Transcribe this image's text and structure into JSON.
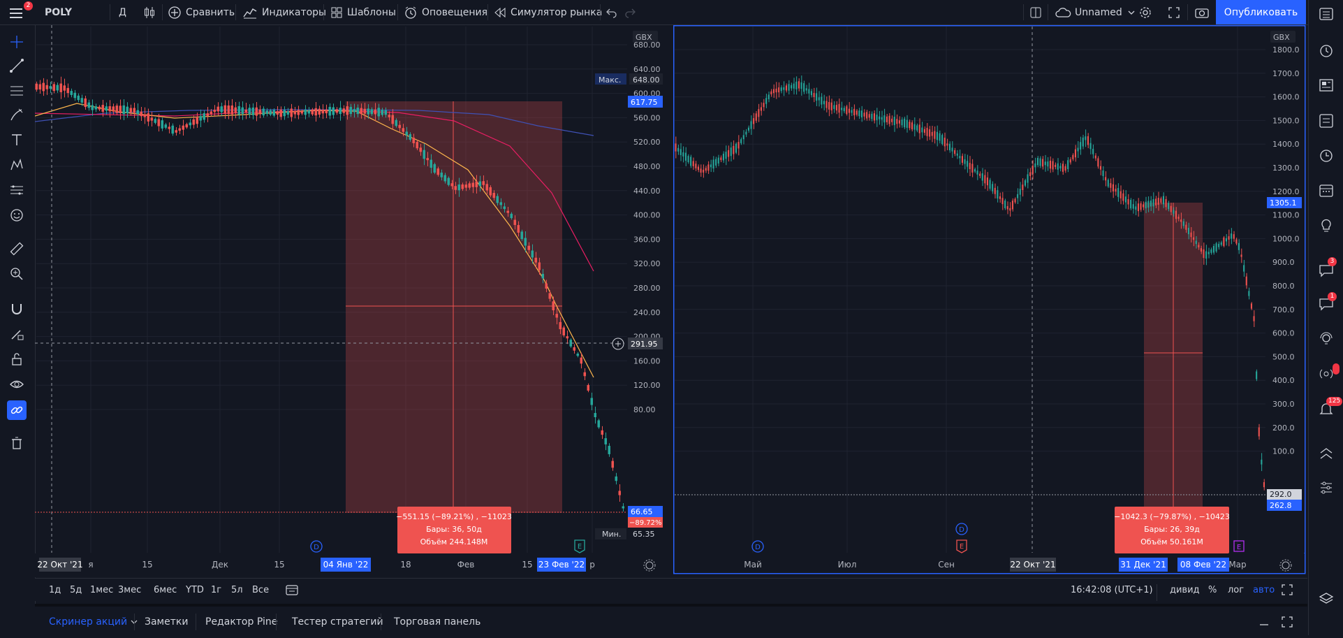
{
  "topbar": {
    "menu_badge": "2",
    "symbol": "POLY",
    "interval": "Д",
    "compare": "Сравнить",
    "indicators": "Индикаторы",
    "templates": "Шаблоны",
    "alerts": "Оповещения",
    "replay": "Симулятор рынка",
    "layout_name": "Unnamed",
    "publish": "Опубликовать"
  },
  "left_chart": {
    "currency": "GBX",
    "price_labels": [
      "680.00",
      "640.00",
      "600.00",
      "560.00",
      "520.00",
      "480.00",
      "440.00",
      "400.00",
      "360.00",
      "320.00",
      "280.00",
      "240.00",
      "200.00",
      "160.00",
      "120.00",
      "80.00"
    ],
    "max_label": "Макс.",
    "max_value": "648.00",
    "min_label": "Мин.",
    "min_value": "65.35",
    "tag_top": "617.75",
    "crosshair_price": "291.95",
    "last_price": "66.65",
    "last_change": "−89.72%",
    "time_labels": [
      "я",
      "15",
      "Дек",
      "15",
      "18",
      "Фев",
      "15",
      "р"
    ],
    "time_start": "22 Окт '21",
    "time_range_start": "04 Янв '22",
    "time_range_end": "23 Фев '22",
    "measure_line1": "−551.15 (−89.21%) , −11023",
    "measure_line2": "Бары: 36, 50д",
    "measure_line3": "Объём 244.148M",
    "event_dividend": "D",
    "event_earnings": "E"
  },
  "right_chart": {
    "currency": "GBX",
    "price_labels": [
      "1800.0",
      "1700.0",
      "1600.0",
      "1500.0",
      "1400.0",
      "1300.0",
      "1200.0",
      "1100.0",
      "1000.0",
      "900.0",
      "800.0",
      "700.0",
      "600.0",
      "500.0",
      "400.0",
      "300.0",
      "200.0",
      "100.0"
    ],
    "tag_price": "1305.1",
    "tag_292": "292.0",
    "last_price": "262.8",
    "time_labels": [
      "Май",
      "Июл",
      "Сен",
      "Мар"
    ],
    "time_cross": "22 Окт '21",
    "time_range_start": "31 Дек '21",
    "time_range_end": "08 Фев '22",
    "measure_line1": "−1042.3 (−79.87%) , −10423",
    "measure_line2": "Бары: 26, 39д",
    "measure_line3": "Объём 50.161M",
    "event_dividend": "D",
    "event_earnings": "E"
  },
  "rangebar": {
    "ranges": [
      "1д",
      "5д",
      "1мес",
      "3мес",
      "6мес",
      "YTD",
      "1г",
      "5л",
      "Все"
    ],
    "clock": "16:42:08 (UTC+1)",
    "adj": "дивид",
    "percent": "%",
    "log": "лог",
    "auto": "авто"
  },
  "panels": {
    "tabs": [
      "Скринер акций",
      "Заметки",
      "Редактор Pine",
      "Тестер стратегий",
      "Торговая панель"
    ]
  },
  "rightbar": {
    "badge_chat": "3",
    "badge_ideas": "1",
    "badge_notify": "125"
  },
  "colors": {
    "up": "#26a69a",
    "down": "#ef5350",
    "accent": "#2962ff",
    "bg": "#131722"
  }
}
